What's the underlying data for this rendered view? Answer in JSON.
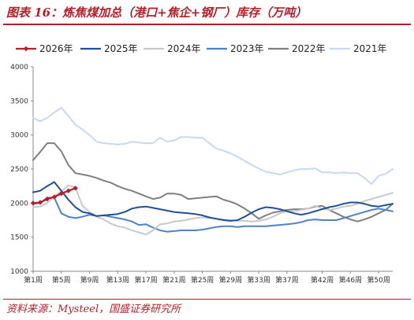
{
  "figure": {
    "title": "图表 16：炼焦煤加总（港口+焦企+钢厂）库存（万吨）",
    "source": "资料来源：Mysteel，国盛证券研究所"
  },
  "colors": {
    "accent": "#b3202a"
  },
  "chart_data": {
    "type": "line",
    "title": "",
    "xlabel": "",
    "ylabel": "",
    "ylim": [
      1000,
      4000
    ],
    "yticks": [
      1000,
      1500,
      2000,
      2500,
      3000,
      3500,
      4000
    ],
    "xlim": [
      1,
      52
    ],
    "xtick_positions": [
      1,
      5,
      9,
      13,
      17,
      21,
      25,
      29,
      33,
      37,
      42,
      46,
      50
    ],
    "xtick_labels": [
      "第1周",
      "第5周",
      "第9周",
      "第13周",
      "第17周",
      "第21周",
      "第25周",
      "第29周",
      "第33周",
      "第37周",
      "第42周",
      "第46周",
      "第50周"
    ],
    "grid": false,
    "legend_position": "top",
    "series": [
      {
        "name": "2026年",
        "color": "#b3202a",
        "width": 2.2,
        "markers": true,
        "values": [
          2000,
          2010,
          2060,
          2090,
          2140,
          2180,
          2220
        ]
      },
      {
        "name": "2025年",
        "color": "#1f4e9c",
        "width": 2,
        "values": [
          2160,
          2180,
          2250,
          2310,
          2180,
          2050,
          1940,
          1870,
          1850,
          1810,
          1820,
          1830,
          1840,
          1870,
          1920,
          1940,
          1950,
          1930,
          1910,
          1890,
          1870,
          1860,
          1850,
          1840,
          1820,
          1790,
          1770,
          1750,
          1740,
          1750,
          1800,
          1860,
          1910,
          1940,
          1930,
          1910,
          1880,
          1850,
          1830,
          1850,
          1880,
          1910,
          1940,
          1960,
          1990,
          2010,
          2010,
          1990,
          1960,
          1950,
          1970,
          1990
        ]
      },
      {
        "name": "2024年",
        "color": "#c9c9c9",
        "width": 2,
        "values": [
          1940,
          1950,
          2000,
          2100,
          2170,
          2260,
          2230,
          1960,
          1870,
          1800,
          1760,
          1700,
          1660,
          1640,
          1600,
          1570,
          1540,
          1600,
          1690,
          1700,
          1730,
          1740,
          1760,
          1780,
          1790,
          1780,
          1770,
          1760,
          1750,
          1740,
          1740,
          1730,
          1740,
          1760,
          1800,
          1850,
          1880,
          1880,
          1900,
          1920,
          1960,
          1920,
          1900,
          1920,
          1950,
          1960,
          1990,
          2030,
          2060,
          2090,
          2120,
          2150
        ]
      },
      {
        "name": "2023年",
        "color": "#4f81c7",
        "width": 2,
        "values": [
          1990,
          2000,
          2080,
          2080,
          1850,
          1800,
          1780,
          1800,
          1830,
          1810,
          1820,
          1800,
          1780,
          1760,
          1730,
          1680,
          1690,
          1640,
          1600,
          1580,
          1590,
          1600,
          1600,
          1600,
          1610,
          1630,
          1650,
          1660,
          1660,
          1650,
          1660,
          1660,
          1660,
          1660,
          1670,
          1680,
          1690,
          1700,
          1720,
          1750,
          1760,
          1750,
          1750,
          1750,
          1780,
          1810,
          1840,
          1870,
          1900,
          1920,
          1900,
          1880
        ]
      },
      {
        "name": "2022年",
        "color": "#7f7f7f",
        "width": 2,
        "values": [
          2630,
          2750,
          2880,
          2880,
          2760,
          2560,
          2440,
          2420,
          2400,
          2370,
          2330,
          2300,
          2250,
          2210,
          2180,
          2140,
          2100,
          2060,
          2080,
          2140,
          2140,
          2120,
          2060,
          2070,
          2080,
          2090,
          2100,
          2050,
          2020,
          1980,
          1920,
          1850,
          1770,
          1820,
          1860,
          1880,
          1900,
          1910,
          1910,
          1920,
          1950,
          1960,
          1900,
          1850,
          1800,
          1760,
          1730,
          1760,
          1800,
          1850,
          1900,
          1990
        ]
      },
      {
        "name": "2021年",
        "color": "#c6d9f1",
        "width": 2,
        "values": [
          3250,
          3200,
          3250,
          3330,
          3400,
          3280,
          3150,
          3080,
          3000,
          2900,
          2880,
          2870,
          2860,
          2870,
          2900,
          2890,
          2880,
          2880,
          2960,
          2900,
          2920,
          2970,
          2970,
          2960,
          2960,
          2880,
          2800,
          2770,
          2730,
          2680,
          2620,
          2560,
          2510,
          2460,
          2440,
          2420,
          2450,
          2480,
          2500,
          2500,
          2510,
          2450,
          2450,
          2440,
          2450,
          2440,
          2440,
          2370,
          2280,
          2400,
          2430,
          2500
        ]
      }
    ]
  }
}
